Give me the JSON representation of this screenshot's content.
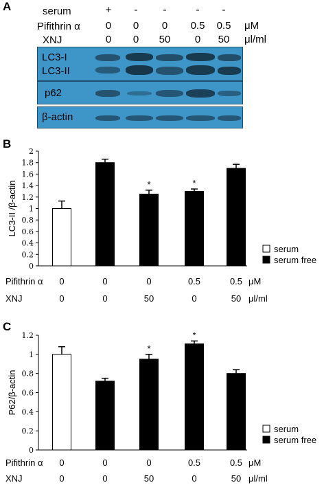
{
  "panel_a": {
    "letter": "A",
    "rows": [
      {
        "label": "serum",
        "values": [
          "+",
          "-",
          "-",
          "-",
          "-"
        ],
        "unit": ""
      },
      {
        "label": "Pifithrin α",
        "values": [
          "0",
          "0",
          "0",
          "0.5",
          "0.5"
        ],
        "unit": "μM"
      },
      {
        "label": "XNJ",
        "values": [
          "0",
          "0",
          "50",
          "0",
          "50"
        ],
        "unit": "μl/ml"
      }
    ],
    "blots": [
      {
        "labels": [
          "LC3-I",
          "LC3-II"
        ]
      },
      {
        "labels": [
          "p62"
        ]
      },
      {
        "labels": [
          "β-actin"
        ]
      }
    ],
    "blot_color": "#3d95c8"
  },
  "chart_data": [
    {
      "type": "bar",
      "panel": "B",
      "ylabel": "LC3-II /β-actin",
      "ylim": [
        0,
        2
      ],
      "yticks": [
        "0",
        "0.2",
        "0.4",
        "0.6",
        "0.8",
        "1",
        "1.2",
        "1.4",
        "1.6",
        "1.8",
        "2"
      ],
      "values": [
        1.0,
        1.8,
        1.25,
        1.3,
        1.7
      ],
      "errors": [
        0.13,
        0.06,
        0.07,
        0.04,
        0.07
      ],
      "fills": [
        "#ffffff",
        "#000000",
        "#000000",
        "#000000",
        "#000000"
      ],
      "significance": [
        "",
        "",
        "*",
        "*",
        ""
      ],
      "legend": [
        "serum",
        "serum free"
      ],
      "conditions": [
        {
          "label": "Pifithrin α",
          "values": [
            "0",
            "0",
            "0",
            "0.5",
            "0.5"
          ],
          "unit": "μM"
        },
        {
          "label": "XNJ",
          "values": [
            "0",
            "0",
            "50",
            "0",
            "50"
          ],
          "unit": "μl/ml"
        }
      ]
    },
    {
      "type": "bar",
      "panel": "C",
      "ylabel": "P62/β-actin",
      "ylim": [
        0,
        1.2
      ],
      "yticks": [
        "0",
        "0.2",
        "0.4",
        "0.6",
        "0.8",
        "1",
        "1.2"
      ],
      "values": [
        1.0,
        0.72,
        0.95,
        1.11,
        0.8
      ],
      "errors": [
        0.08,
        0.03,
        0.05,
        0.03,
        0.04
      ],
      "fills": [
        "#ffffff",
        "#000000",
        "#000000",
        "#000000",
        "#000000"
      ],
      "significance": [
        "",
        "",
        "*",
        "*",
        ""
      ],
      "legend": [
        "serum",
        "serum free"
      ],
      "conditions": [
        {
          "label": "Pifithrin α",
          "values": [
            "0",
            "0",
            "0",
            "0.5",
            "0.5"
          ],
          "unit": "μM"
        },
        {
          "label": "XNJ",
          "values": [
            "0",
            "0",
            "50",
            "0",
            "50"
          ],
          "unit": "μl/ml"
        }
      ]
    }
  ]
}
